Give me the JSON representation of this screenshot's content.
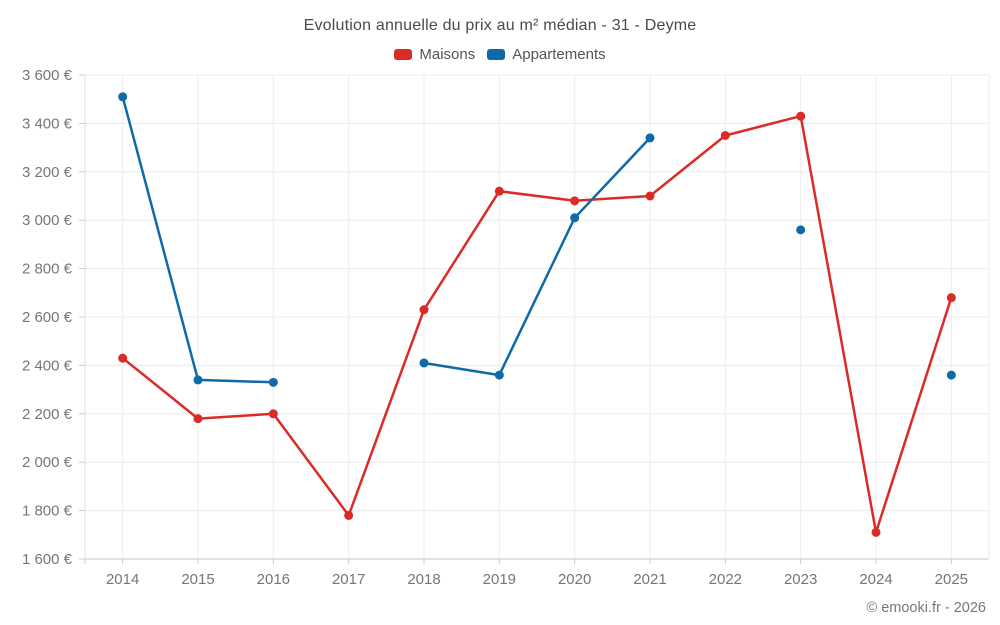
{
  "chart_data": {
    "type": "line",
    "title": "Evolution annuelle du prix au m² médian - 31 - Deyme",
    "footer": "© emooki.fr - 2026",
    "categories": [
      "2014",
      "2015",
      "2016",
      "2017",
      "2018",
      "2019",
      "2020",
      "2021",
      "2022",
      "2023",
      "2024",
      "2025"
    ],
    "series": [
      {
        "name": "Maisons",
        "color": "#db2b27",
        "values": [
          2430,
          2180,
          2200,
          1780,
          2630,
          3120,
          3080,
          3100,
          3350,
          3430,
          1710,
          2680
        ]
      },
      {
        "name": "Appartements",
        "color": "#0f6aa9",
        "values": [
          3510,
          2340,
          2330,
          null,
          2410,
          2360,
          3010,
          3340,
          null,
          2960,
          null,
          2360
        ]
      }
    ],
    "xlabel": "",
    "ylabel": "",
    "ylim": [
      1600,
      3600
    ],
    "ytick_step": 200,
    "ytick_labels": [
      "1 600 €",
      "1 800 €",
      "2 000 €",
      "2 200 €",
      "2 400 €",
      "2 600 €",
      "2 800 €",
      "3 000 €",
      "3 200 €",
      "3 400 €",
      "3 600 €"
    ],
    "grid": "on",
    "legend_position": "top",
    "marker": "circle"
  },
  "theme": {
    "grid_color": "#ececec",
    "axis_color": "#c6c6c6",
    "tick_color": "#cccccc",
    "left_axis_color": "#e2e2e2"
  }
}
